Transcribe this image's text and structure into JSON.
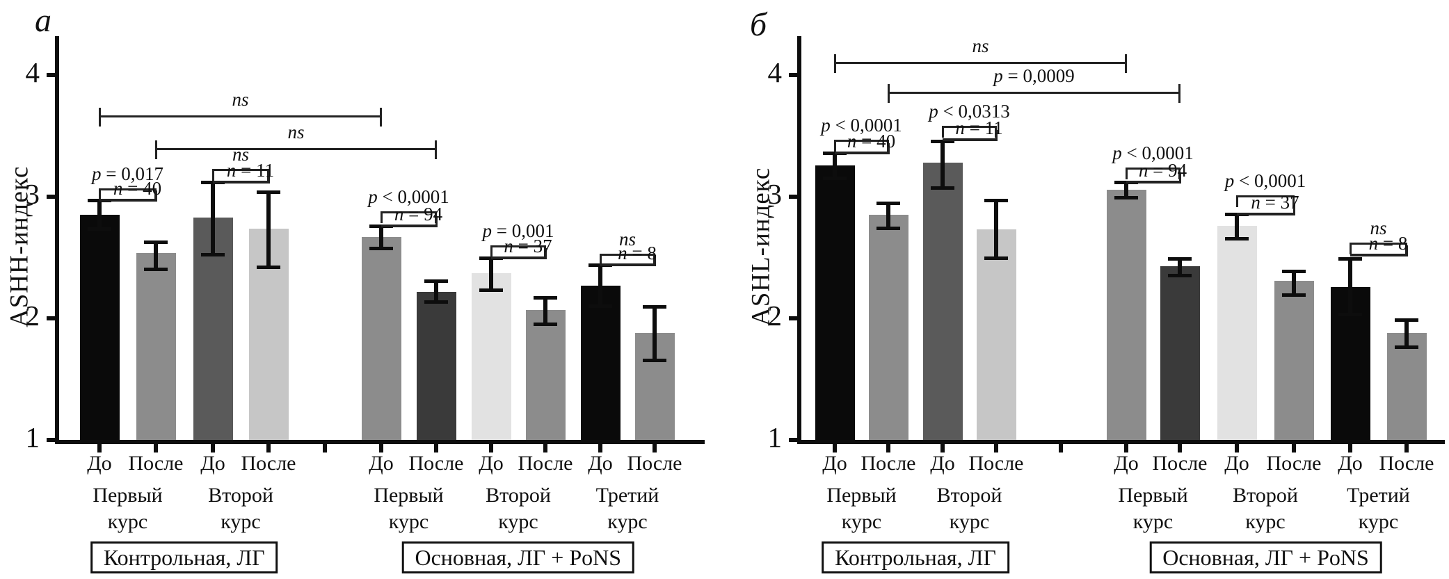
{
  "chart_data": [
    {
      "type": "bar",
      "panel_label": "a",
      "ylabel": "ASHH-индекс",
      "ylim": [
        1,
        4.3
      ],
      "yticks": [
        1,
        2,
        3,
        4
      ],
      "grid": false,
      "palette": {
        "black": "#0a0a0a",
        "gray": "#8c8c8c",
        "darkgray": "#5a5a5a",
        "lightgray": "#c6c6c6",
        "verydark": "#3a3a3a",
        "verylight": "#e2e2e2"
      },
      "arms": [
        {
          "label": "Контрольная, ЛГ",
          "group_start": 0,
          "group_end": 1
        },
        {
          "label": "Основная, ЛГ + PoNS",
          "group_start": 2,
          "group_end": 4
        }
      ],
      "groups": [
        {
          "course": "Первый курс",
          "bars": [
            {
              "phase": "До",
              "value": 2.85,
              "err_low": 2.73,
              "err_high": 2.97,
              "color_key": "black"
            },
            {
              "phase": "После",
              "value": 2.54,
              "err_low": 2.4,
              "err_high": 2.63,
              "color_key": "gray"
            }
          ]
        },
        {
          "course": "Второй курс",
          "bars": [
            {
              "phase": "До",
              "value": 2.83,
              "err_low": 2.52,
              "err_high": 3.12,
              "color_key": "darkgray"
            },
            {
              "phase": "После",
              "value": 2.74,
              "err_low": 2.42,
              "err_high": 3.04,
              "color_key": "lightgray"
            }
          ]
        },
        {
          "course": "Первый курс",
          "bars": [
            {
              "phase": "До",
              "value": 2.67,
              "err_low": 2.57,
              "err_high": 2.76,
              "color_key": "gray"
            },
            {
              "phase": "После",
              "value": 2.22,
              "err_low": 2.13,
              "err_high": 2.31,
              "color_key": "verydark"
            }
          ]
        },
        {
          "course": "Второй курс",
          "bars": [
            {
              "phase": "До",
              "value": 2.37,
              "err_low": 2.23,
              "err_high": 2.5,
              "color_key": "verylight"
            },
            {
              "phase": "После",
              "value": 2.07,
              "err_low": 1.95,
              "err_high": 2.17,
              "color_key": "gray"
            }
          ]
        },
        {
          "course": "Третий курс",
          "bars": [
            {
              "phase": "До",
              "value": 2.27,
              "err_low": 2.1,
              "err_high": 2.44,
              "color_key": "black"
            },
            {
              "phase": "После",
              "value": 1.88,
              "err_low": 1.65,
              "err_high": 2.1,
              "color_key": "gray"
            }
          ]
        }
      ],
      "brackets": [
        {
          "type": "span",
          "b1": 0,
          "b2": 4,
          "y": 3.66,
          "label": "ns"
        },
        {
          "type": "span",
          "b1": 1,
          "b2": 5,
          "y": 3.39,
          "label": "ns"
        },
        {
          "type": "pair",
          "b1": 0,
          "b2": 1,
          "y": 3.06,
          "label": "p = 0,017",
          "n_label": "n = 40",
          "n_y": 2.97
        },
        {
          "type": "pair",
          "b1": 2,
          "b2": 3,
          "y": 3.22,
          "label": "ns",
          "n_label": "n = 11",
          "n_y": 3.12
        },
        {
          "type": "pair",
          "b1": 4,
          "b2": 5,
          "y": 2.87,
          "label": "p < 0,0001",
          "n_label": "n = 94",
          "n_y": 2.76
        },
        {
          "type": "pair",
          "b1": 6,
          "b2": 7,
          "y": 2.59,
          "label": "p = 0,001",
          "n_label": "n = 37",
          "n_y": 2.5
        },
        {
          "type": "pair",
          "b1": 8,
          "b2": 9,
          "y": 2.52,
          "label": "ns",
          "n_label": "n = 8",
          "n_y": 2.44
        }
      ]
    },
    {
      "type": "bar",
      "panel_label": "б",
      "ylabel": "ASHL-индекс",
      "ylim": [
        1,
        4.3
      ],
      "yticks": [
        1,
        2,
        3,
        4
      ],
      "grid": false,
      "palette": {
        "black": "#0a0a0a",
        "gray": "#8c8c8c",
        "darkgray": "#5a5a5a",
        "lightgray": "#c6c6c6",
        "verydark": "#3a3a3a",
        "verylight": "#e2e2e2"
      },
      "arms": [
        {
          "label": "Контрольная, ЛГ",
          "group_start": 0,
          "group_end": 1
        },
        {
          "label": "Основная, ЛГ + PoNS",
          "group_start": 2,
          "group_end": 4
        }
      ],
      "groups": [
        {
          "course": "Первый курс",
          "bars": [
            {
              "phase": "До",
              "value": 3.26,
              "err_low": 3.15,
              "err_high": 3.36,
              "color_key": "black"
            },
            {
              "phase": "После",
              "value": 2.85,
              "err_low": 2.74,
              "err_high": 2.95,
              "color_key": "gray"
            }
          ]
        },
        {
          "course": "Второй курс",
          "bars": [
            {
              "phase": "До",
              "value": 3.28,
              "err_low": 3.07,
              "err_high": 3.46,
              "color_key": "darkgray"
            },
            {
              "phase": "После",
              "value": 2.73,
              "err_low": 2.49,
              "err_high": 2.97,
              "color_key": "lightgray"
            }
          ]
        },
        {
          "course": "Первый курс",
          "bars": [
            {
              "phase": "До",
              "value": 3.06,
              "err_low": 2.99,
              "err_high": 3.12,
              "color_key": "gray"
            },
            {
              "phase": "После",
              "value": 2.43,
              "err_low": 2.35,
              "err_high": 2.49,
              "color_key": "verydark"
            }
          ]
        },
        {
          "course": "Второй курс",
          "bars": [
            {
              "phase": "До",
              "value": 2.76,
              "err_low": 2.65,
              "err_high": 2.86,
              "color_key": "verylight"
            },
            {
              "phase": "После",
              "value": 2.31,
              "err_low": 2.19,
              "err_high": 2.39,
              "color_key": "gray"
            }
          ]
        },
        {
          "course": "Третий курс",
          "bars": [
            {
              "phase": "До",
              "value": 2.26,
              "err_low": 2.03,
              "err_high": 2.49,
              "color_key": "black"
            },
            {
              "phase": "После",
              "value": 1.88,
              "err_low": 1.76,
              "err_high": 1.99,
              "color_key": "gray"
            }
          ]
        }
      ],
      "brackets": [
        {
          "type": "span",
          "b1": 0,
          "b2": 4,
          "y": 4.1,
          "label": "ns"
        },
        {
          "type": "span",
          "b1": 1,
          "b2": 5,
          "y": 3.85,
          "label": "p = 0,0009"
        },
        {
          "type": "pair",
          "b1": 0,
          "b2": 1,
          "y": 3.46,
          "label": "p < 0,0001",
          "n_label": "n = 40",
          "n_y": 3.36
        },
        {
          "type": "pair",
          "b1": 2,
          "b2": 3,
          "y": 3.57,
          "label": "p < 0,0313",
          "n_label": "n = 11",
          "n_y": 3.47
        },
        {
          "type": "pair",
          "b1": 4,
          "b2": 5,
          "y": 3.23,
          "label": "p < 0,0001",
          "n_label": "n = 94",
          "n_y": 3.12
        },
        {
          "type": "pair",
          "b1": 6,
          "b2": 7,
          "y": 3.0,
          "label": "p < 0,0001",
          "n_label": "n = 37",
          "n_y": 2.86
        },
        {
          "type": "pair",
          "b1": 8,
          "b2": 9,
          "y": 2.61,
          "label": "ns",
          "n_label": "n = 8",
          "n_y": 2.52
        }
      ]
    }
  ]
}
